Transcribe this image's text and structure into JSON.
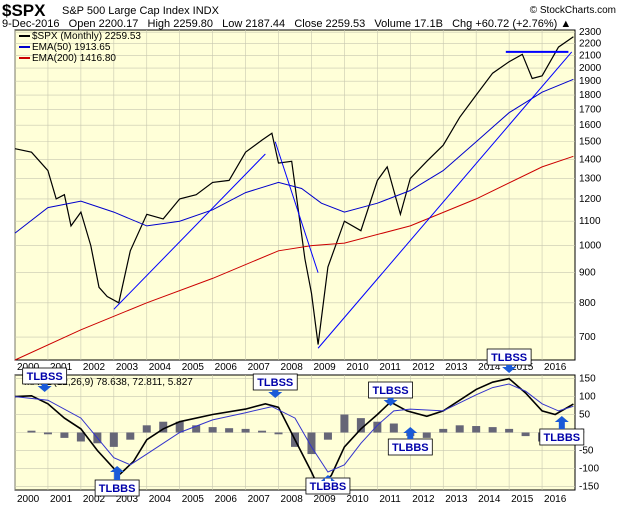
{
  "header": {
    "symbol": "$SPX",
    "name": "S&P 500 Large Cap Index INDX",
    "copyright": "© StockCharts.com",
    "ohlc_line": "9-Dec-2016   Open 2200.17   High 2259.80   Low 2187.44   Close 2259.53   Volume 17.1B   Chg +60.72 (+2.76%) ▲"
  },
  "legend": {
    "price": "$SPX (Monthly) 2259.53",
    "ema50": "EMA(50) 1913.65",
    "ema200": "EMA(200) 1416.80",
    "macd": "MACD(12,26,9) 78.638, 72.811, 5.827"
  },
  "colors": {
    "price": "#000000",
    "ema50": "#0000cc",
    "ema200": "#cc0000",
    "trendline": "#0000ff",
    "panel_bg": "#ffffd8",
    "macd_line": "#000000",
    "signal_line": "#3333cc",
    "histogram": "#666677",
    "annotation_box": "#ffffff",
    "annotation_text": "#0000aa",
    "arrow": "#1a5ad8"
  },
  "chart_data": [
    {
      "type": "line",
      "title": "$SPX S&P 500 Large Cap Index INDX",
      "x_axis": [
        "2000",
        "2001",
        "2002",
        "2003",
        "2004",
        "2005",
        "2006",
        "2007",
        "2008",
        "2009",
        "2010",
        "2011",
        "2012",
        "2013",
        "2014",
        "2015",
        "2016"
      ],
      "y_scale": "log",
      "ylim": [
        640,
        2320
      ],
      "y_ticks": [
        700,
        800,
        900,
        1000,
        1100,
        1200,
        1300,
        1400,
        1500,
        1600,
        1700,
        1800,
        1900,
        2000,
        2100,
        2200,
        2300
      ],
      "series": [
        {
          "name": "$SPX (Monthly)",
          "x": [
            2000.0,
            2000.5,
            2001.0,
            2001.25,
            2001.5,
            2001.7,
            2002.0,
            2002.3,
            2002.55,
            2002.8,
            2003.15,
            2003.5,
            2004.0,
            2004.5,
            2005.0,
            2005.5,
            2006.0,
            2006.5,
            2007.0,
            2007.5,
            2007.8,
            2008.0,
            2008.4,
            2008.8,
            2009.0,
            2009.2,
            2009.5,
            2010.0,
            2010.5,
            2011.0,
            2011.3,
            2011.7,
            2012.0,
            2012.5,
            2013.0,
            2013.5,
            2014.0,
            2014.5,
            2015.0,
            2015.4,
            2015.7,
            2016.0,
            2016.5,
            2016.95
          ],
          "values": [
            1460,
            1440,
            1340,
            1200,
            1220,
            1080,
            1140,
            1000,
            850,
            820,
            800,
            980,
            1130,
            1110,
            1200,
            1220,
            1280,
            1290,
            1440,
            1510,
            1550,
            1380,
            1390,
            950,
            830,
            680,
            920,
            1100,
            1060,
            1290,
            1360,
            1130,
            1300,
            1390,
            1480,
            1650,
            1800,
            1960,
            2050,
            2110,
            1920,
            1940,
            2170,
            2260
          ]
        },
        {
          "name": "EMA(50)",
          "x": [
            2000.0,
            2001.0,
            2002.0,
            2003.0,
            2004.0,
            2005.0,
            2006.0,
            2007.0,
            2008.0,
            2008.7,
            2009.3,
            2010.0,
            2011.0,
            2012.0,
            2013.0,
            2014.0,
            2015.0,
            2016.0,
            2016.95
          ],
          "values": [
            1050,
            1160,
            1190,
            1140,
            1080,
            1100,
            1150,
            1230,
            1280,
            1250,
            1180,
            1140,
            1180,
            1240,
            1340,
            1500,
            1680,
            1820,
            1914
          ]
        },
        {
          "name": "EMA(200)",
          "x": [
            2000.0,
            2002.0,
            2004.0,
            2006.0,
            2008.0,
            2009.0,
            2010.0,
            2012.0,
            2014.0,
            2016.0,
            2016.95
          ],
          "values": [
            640,
            720,
            800,
            880,
            980,
            1000,
            1010,
            1080,
            1200,
            1360,
            1417
          ]
        }
      ],
      "trendlines": [
        {
          "x": [
            2003.0,
            2007.6
          ],
          "values": [
            780,
            1430
          ]
        },
        {
          "x": [
            2007.9,
            2009.2
          ],
          "values": [
            1500,
            900
          ]
        },
        {
          "x": [
            2009.2,
            2016.9
          ],
          "values": [
            670,
            2130
          ]
        },
        {
          "x": [
            2014.9,
            2016.8
          ],
          "values": [
            2130,
            2130
          ]
        }
      ]
    },
    {
      "type": "line",
      "title": "MACD(12,26,9)",
      "x_axis": [
        "2000",
        "2001",
        "2002",
        "2003",
        "2004",
        "2005",
        "2006",
        "2007",
        "2008",
        "2009",
        "2010",
        "2011",
        "2012",
        "2013",
        "2014",
        "2015",
        "2016"
      ],
      "ylim": [
        -160,
        160
      ],
      "y_ticks": [
        -150,
        -100,
        -50,
        0,
        50,
        100,
        150
      ],
      "series": [
        {
          "name": "MACD",
          "x": [
            2000.0,
            2000.5,
            2001.0,
            2001.5,
            2002.0,
            2002.5,
            2003.0,
            2003.2,
            2003.6,
            2004.0,
            2004.5,
            2005.0,
            2006.0,
            2007.0,
            2007.6,
            2008.0,
            2008.5,
            2009.0,
            2009.2,
            2009.6,
            2010.0,
            2010.5,
            2011.0,
            2011.4,
            2011.9,
            2012.5,
            2013.0,
            2013.5,
            2014.0,
            2014.5,
            2015.0,
            2015.5,
            2016.0,
            2016.4,
            2016.95
          ],
          "values": [
            100,
            102,
            80,
            40,
            10,
            -50,
            -100,
            -115,
            -80,
            -20,
            10,
            30,
            50,
            65,
            80,
            70,
            -20,
            -110,
            -150,
            -120,
            -40,
            10,
            50,
            85,
            60,
            45,
            60,
            90,
            120,
            140,
            150,
            110,
            60,
            50,
            79
          ]
        },
        {
          "name": "Signal",
          "x": [
            2000.0,
            2001.0,
            2002.0,
            2003.0,
            2003.5,
            2004.0,
            2005.0,
            2006.0,
            2007.0,
            2007.8,
            2008.5,
            2009.0,
            2009.5,
            2010.0,
            2010.5,
            2011.0,
            2011.5,
            2012.0,
            2013.0,
            2014.0,
            2014.5,
            2015.0,
            2015.5,
            2016.0,
            2016.5,
            2016.95
          ],
          "values": [
            100,
            90,
            40,
            -70,
            -90,
            -60,
            0,
            35,
            55,
            72,
            40,
            -40,
            -110,
            -90,
            -30,
            20,
            60,
            65,
            60,
            105,
            125,
            135,
            115,
            80,
            60,
            73
          ]
        }
      ],
      "histogram": {
        "x": [
          2000.5,
          2001.0,
          2001.5,
          2002.0,
          2002.5,
          2003.0,
          2003.5,
          2004.0,
          2004.5,
          2005.0,
          2005.5,
          2006.0,
          2006.5,
          2007.0,
          2007.5,
          2008.0,
          2008.5,
          2009.0,
          2009.5,
          2010.0,
          2010.5,
          2011.0,
          2011.5,
          2012.0,
          2012.5,
          2013.0,
          2013.5,
          2014.0,
          2014.5,
          2015.0,
          2015.5,
          2016.0,
          2016.5,
          2016.95
        ],
        "values": [
          5,
          -5,
          -15,
          -25,
          -30,
          -40,
          -20,
          20,
          30,
          30,
          20,
          15,
          12,
          10,
          5,
          -5,
          -40,
          -60,
          -20,
          50,
          40,
          30,
          25,
          -10,
          -15,
          10,
          20,
          18,
          15,
          10,
          -10,
          -25,
          -10,
          6
        ]
      }
    }
  ],
  "annotations": {
    "tlbss": [
      "TLBSS",
      "TLBSS",
      "TLBSS",
      "TLBSS"
    ],
    "tlbbs": [
      "TLBBS",
      "TLBBS",
      "TLBBS",
      "TLBBS"
    ]
  }
}
